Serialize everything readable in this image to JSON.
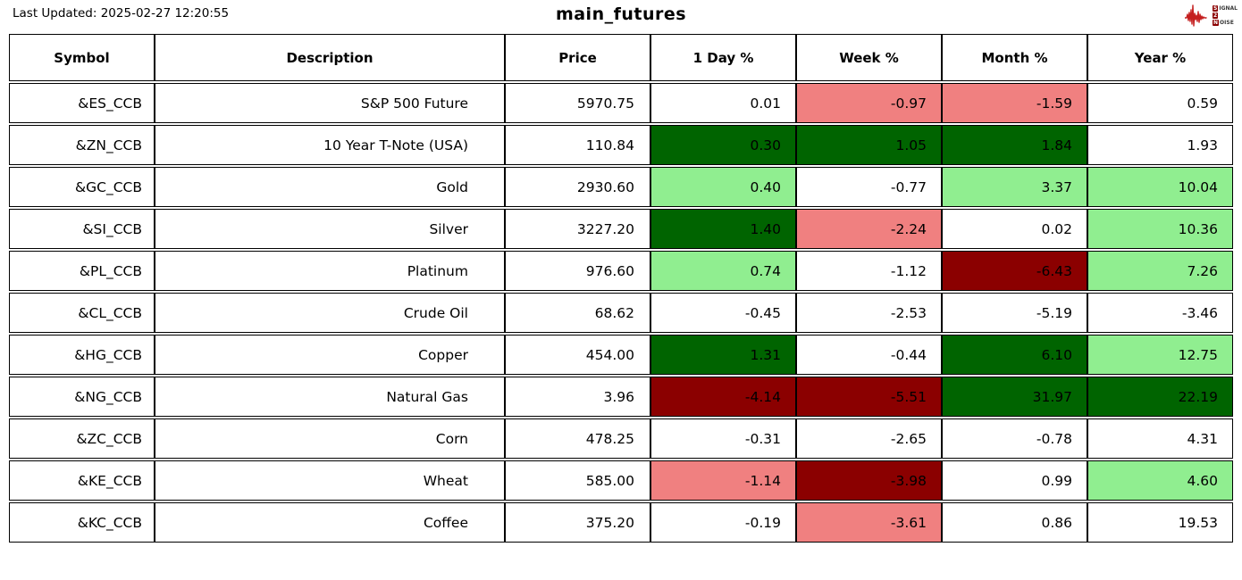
{
  "header": {
    "last_updated": "Last Updated: 2025-02-27 12:20:55",
    "title": "main_futures"
  },
  "logo": {
    "name": "signal-2-noise",
    "waveform_color": "#c41e1e",
    "box_color": "#8B0000",
    "rows": [
      {
        "boxed": "S",
        "rest": "IGNAL"
      },
      {
        "boxed": "2",
        "rest": ""
      },
      {
        "boxed": "N",
        "rest": "OISE"
      }
    ]
  },
  "colors": {
    "w": "#FFFFFF",
    "g1": "#90EE90",
    "g2": "#006400",
    "r1": "#F08080",
    "r2": "#8B0000"
  },
  "chart_data": {
    "type": "table",
    "title": "main_futures",
    "last_updated": "2025-02-27 12:20:55",
    "columns": [
      "Symbol",
      "Description",
      "Price",
      "1 Day %",
      "Week %",
      "Month %",
      "Year %"
    ],
    "color_legend": {
      "g2": "strong gain (darkgreen)",
      "g1": "moderate gain (lightgreen)",
      "w": "neutral (white)",
      "r1": "moderate loss (lightcoral)",
      "r2": "strong loss (darkred)"
    },
    "rows": [
      {
        "symbol": "&ES_CCB",
        "description": "S&P 500 Future",
        "price": "5970.75",
        "pcts": [
          "0.01",
          "-0.97",
          "-1.59",
          "0.59"
        ],
        "pct_colors": [
          "w",
          "r1",
          "r1",
          "w"
        ]
      },
      {
        "symbol": "&ZN_CCB",
        "description": "10 Year T-Note (USA)",
        "price": "110.84",
        "pcts": [
          "0.30",
          "1.05",
          "1.84",
          "1.93"
        ],
        "pct_colors": [
          "g2",
          "g2",
          "g2",
          "w"
        ]
      },
      {
        "symbol": "&GC_CCB",
        "description": "Gold",
        "price": "2930.60",
        "pcts": [
          "0.40",
          "-0.77",
          "3.37",
          "10.04"
        ],
        "pct_colors": [
          "g1",
          "w",
          "g1",
          "g1"
        ]
      },
      {
        "symbol": "&SI_CCB",
        "description": "Silver",
        "price": "3227.20",
        "pcts": [
          "1.40",
          "-2.24",
          "0.02",
          "10.36"
        ],
        "pct_colors": [
          "g2",
          "r1",
          "w",
          "g1"
        ]
      },
      {
        "symbol": "&PL_CCB",
        "description": "Platinum",
        "price": "976.60",
        "pcts": [
          "0.74",
          "-1.12",
          "-6.43",
          "7.26"
        ],
        "pct_colors": [
          "g1",
          "w",
          "r2",
          "g1"
        ]
      },
      {
        "symbol": "&CL_CCB",
        "description": "Crude Oil",
        "price": "68.62",
        "pcts": [
          "-0.45",
          "-2.53",
          "-5.19",
          "-3.46"
        ],
        "pct_colors": [
          "w",
          "w",
          "w",
          "w"
        ]
      },
      {
        "symbol": "&HG_CCB",
        "description": "Copper",
        "price": "454.00",
        "pcts": [
          "1.31",
          "-0.44",
          "6.10",
          "12.75"
        ],
        "pct_colors": [
          "g2",
          "w",
          "g2",
          "g1"
        ]
      },
      {
        "symbol": "&NG_CCB",
        "description": "Natural Gas",
        "price": "3.96",
        "pcts": [
          "-4.14",
          "-5.51",
          "31.97",
          "22.19"
        ],
        "pct_colors": [
          "r2",
          "r2",
          "g2",
          "g2"
        ]
      },
      {
        "symbol": "&ZC_CCB",
        "description": "Corn",
        "price": "478.25",
        "pcts": [
          "-0.31",
          "-2.65",
          "-0.78",
          "4.31"
        ],
        "pct_colors": [
          "w",
          "w",
          "w",
          "w"
        ]
      },
      {
        "symbol": "&KE_CCB",
        "description": "Wheat",
        "price": "585.00",
        "pcts": [
          "-1.14",
          "-3.98",
          "0.99",
          "4.60"
        ],
        "pct_colors": [
          "r1",
          "r2",
          "w",
          "g1"
        ]
      },
      {
        "symbol": "&KC_CCB",
        "description": "Coffee",
        "price": "375.20",
        "pcts": [
          "-0.19",
          "-3.61",
          "0.86",
          "19.53"
        ],
        "pct_colors": [
          "w",
          "r1",
          "w",
          "w"
        ]
      }
    ]
  }
}
